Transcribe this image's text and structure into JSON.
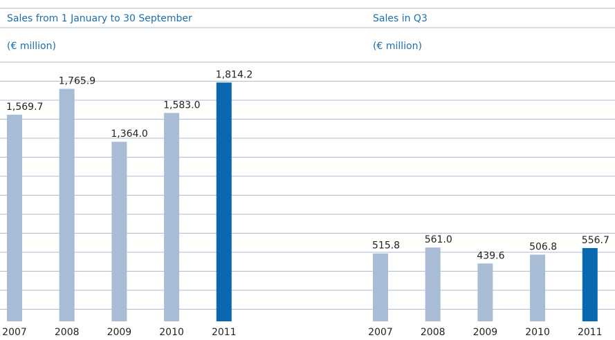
{
  "chart_data": [
    {
      "type": "bar",
      "title": "Sales from 1 January to 30 September",
      "subtitle": "(€ million)",
      "categories": [
        "2007",
        "2008",
        "2009",
        "2010",
        "2011"
      ],
      "values": [
        1569.7,
        1765.9,
        1364.0,
        1583.0,
        1814.2
      ],
      "value_labels": [
        "1,569.7",
        "1,765.9",
        "1,364.0",
        "1,583.0",
        "1,814.2"
      ],
      "colors": [
        "#a9bcd6",
        "#a9bcd6",
        "#a9bcd6",
        "#a9bcd6",
        "#0a68b0"
      ],
      "ylim": [
        0,
        2000
      ]
    },
    {
      "type": "bar",
      "title": "Sales in Q3",
      "subtitle": "(€ million)",
      "categories": [
        "2007",
        "2008",
        "2009",
        "2010",
        "2011"
      ],
      "values": [
        515.8,
        561.0,
        439.6,
        506.8,
        556.7
      ],
      "value_labels": [
        "515.8",
        "561.0",
        "439.6",
        "506.8",
        "556.7"
      ],
      "colors": [
        "#a9bcd6",
        "#a9bcd6",
        "#a9bcd6",
        "#a9bcd6",
        "#0a68b0"
      ],
      "ylim": [
        0,
        2000
      ]
    }
  ]
}
